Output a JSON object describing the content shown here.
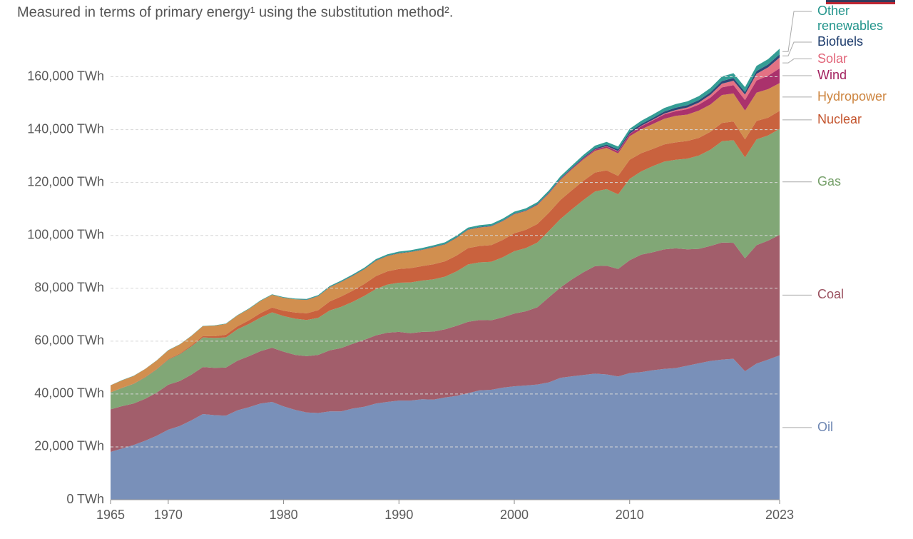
{
  "chart_data": {
    "type": "stacked_area",
    "subtitle": "Measured in terms of primary energy¹ using the substitution method².",
    "x": [
      1965,
      1966,
      1967,
      1968,
      1969,
      1970,
      1971,
      1972,
      1973,
      1974,
      1975,
      1976,
      1977,
      1978,
      1979,
      1980,
      1981,
      1982,
      1983,
      1984,
      1985,
      1986,
      1987,
      1988,
      1989,
      1990,
      1991,
      1992,
      1993,
      1994,
      1995,
      1996,
      1997,
      1998,
      1999,
      2000,
      2001,
      2002,
      2003,
      2004,
      2005,
      2006,
      2007,
      2008,
      2009,
      2010,
      2011,
      2012,
      2013,
      2014,
      2015,
      2016,
      2017,
      2018,
      2019,
      2020,
      2021,
      2022,
      2023
    ],
    "xlim": [
      1965,
      2023
    ],
    "xticks": [
      1965,
      1970,
      1980,
      1990,
      2000,
      2010,
      2023
    ],
    "ylim": [
      0,
      175000
    ],
    "yticks": [
      {
        "value": 0,
        "label": "0 TWh"
      },
      {
        "value": 20000,
        "label": "20,000 TWh"
      },
      {
        "value": 40000,
        "label": "40,000 TWh"
      },
      {
        "value": 60000,
        "label": "60,000 TWh"
      },
      {
        "value": 80000,
        "label": "80,000 TWh"
      },
      {
        "value": 100000,
        "label": "100,000 TWh"
      },
      {
        "value": 120000,
        "label": "120,000 TWh"
      },
      {
        "value": 140000,
        "label": "140,000 TWh"
      },
      {
        "value": 160000,
        "label": "160,000 TWh"
      }
    ],
    "grid": true,
    "series": [
      {
        "name": "Oil",
        "color": "#6e87b3",
        "values": [
          18100,
          19400,
          20700,
          22300,
          24200,
          26500,
          27900,
          30000,
          32400,
          32000,
          31800,
          33800,
          35000,
          36400,
          37000,
          35300,
          34000,
          33000,
          32800,
          33400,
          33400,
          34500,
          35200,
          36400,
          37000,
          37500,
          37500,
          38000,
          37900,
          38700,
          39300,
          40300,
          41400,
          41600,
          42400,
          42900,
          43200,
          43600,
          44400,
          46100,
          46700,
          47200,
          47700,
          47400,
          46600,
          47900,
          48300,
          49000,
          49500,
          49800,
          50700,
          51600,
          52500,
          53000,
          53300,
          48600,
          51500,
          53000,
          54600
        ]
      },
      {
        "name": "Coal",
        "color": "#9a505e",
        "values": [
          16100,
          16000,
          15700,
          15900,
          16300,
          17000,
          17000,
          17300,
          17800,
          17900,
          18200,
          18800,
          19300,
          19800,
          20500,
          20700,
          20800,
          21300,
          22000,
          23100,
          24000,
          24500,
          25300,
          25800,
          26200,
          26000,
          25500,
          25500,
          25700,
          25800,
          26500,
          27000,
          26600,
          26300,
          26600,
          27500,
          28100,
          29200,
          32200,
          34200,
          36700,
          38900,
          40700,
          41100,
          40700,
          42700,
          44400,
          44600,
          45200,
          45300,
          44000,
          43300,
          43500,
          44300,
          43900,
          42700,
          44800,
          45000,
          45600
        ]
      },
      {
        "name": "Gas",
        "color": "#76a06a",
        "values": [
          6400,
          6900,
          7400,
          8100,
          8800,
          9500,
          10100,
          10700,
          11200,
          11300,
          11400,
          11900,
          12200,
          12700,
          13400,
          13500,
          13700,
          13700,
          14000,
          15100,
          15600,
          15900,
          16600,
          17500,
          18200,
          18600,
          19200,
          19400,
          19800,
          19900,
          20600,
          21700,
          21800,
          22100,
          22700,
          23600,
          23900,
          24500,
          25100,
          25900,
          26500,
          27300,
          28200,
          29000,
          28200,
          30800,
          31500,
          32600,
          33200,
          33500,
          34300,
          35300,
          36400,
          38300,
          38800,
          38200,
          40000,
          39800,
          40100
        ]
      },
      {
        "name": "Nuclear",
        "color": "#c4552e",
        "values": [
          70,
          90,
          110,
          140,
          170,
          220,
          300,
          400,
          550,
          650,
          1000,
          1100,
          1400,
          1700,
          1800,
          2000,
          2300,
          2500,
          2900,
          3400,
          3900,
          4200,
          4500,
          4900,
          5000,
          5200,
          5400,
          5500,
          5700,
          5800,
          6000,
          6200,
          6200,
          6300,
          6600,
          6800,
          6900,
          7000,
          6900,
          7200,
          7200,
          7300,
          7200,
          7100,
          7000,
          7200,
          6900,
          6500,
          6500,
          6600,
          6700,
          6700,
          6800,
          6900,
          7100,
          6800,
          7000,
          6700,
          6800
        ]
      },
      {
        "name": "Hydropower",
        "color": "#cd8540",
        "values": [
          2600,
          2800,
          2900,
          3000,
          3200,
          3300,
          3400,
          3500,
          3700,
          4000,
          4100,
          4100,
          4300,
          4600,
          4800,
          4900,
          5000,
          5100,
          5300,
          5400,
          5500,
          5600,
          5600,
          5800,
          5800,
          5900,
          6100,
          6100,
          6400,
          6400,
          6700,
          6900,
          7000,
          7100,
          7100,
          7200,
          7100,
          7200,
          7200,
          7600,
          7900,
          8100,
          8200,
          8500,
          8500,
          8900,
          9000,
          9400,
          9700,
          10000,
          10000,
          10300,
          10300,
          10600,
          10600,
          10900,
          10700,
          10800,
          10500
        ]
      },
      {
        "name": "Wind",
        "color": "#a3215f",
        "values": [
          0,
          0,
          0,
          0,
          0,
          0,
          0,
          0,
          0,
          0,
          0,
          0,
          0,
          0,
          0,
          0,
          0,
          0,
          0,
          0,
          0,
          0,
          0,
          0,
          0,
          10,
          10,
          10,
          20,
          20,
          20,
          30,
          30,
          50,
          60,
          80,
          100,
          140,
          170,
          230,
          280,
          360,
          470,
          590,
          740,
          920,
          1160,
          1370,
          1640,
          1780,
          2050,
          2280,
          2620,
          2890,
          3120,
          4000,
          4600,
          5100,
          5600
        ]
      },
      {
        "name": "Solar",
        "color": "#e2667a",
        "values": [
          0,
          0,
          0,
          0,
          0,
          0,
          0,
          0,
          0,
          0,
          0,
          0,
          0,
          0,
          0,
          0,
          0,
          0,
          0,
          0,
          0,
          0,
          0,
          0,
          0,
          0,
          0,
          0,
          0,
          0,
          0,
          0,
          0,
          0,
          0,
          5,
          10,
          10,
          15,
          20,
          30,
          40,
          60,
          100,
          170,
          80,
          170,
          250,
          330,
          460,
          620,
          790,
          1070,
          1390,
          1680,
          2060,
          2520,
          3140,
          4100
        ]
      },
      {
        "name": "Biofuels",
        "color": "#1b3a6b",
        "values": [
          0,
          0,
          0,
          0,
          0,
          0,
          0,
          0,
          0,
          0,
          0,
          0,
          0,
          0,
          0,
          30,
          40,
          60,
          80,
          100,
          110,
          120,
          120,
          120,
          120,
          120,
          120,
          130,
          130,
          140,
          150,
          150,
          150,
          150,
          140,
          140,
          150,
          170,
          200,
          230,
          260,
          330,
          430,
          570,
          620,
          700,
          710,
          720,
          790,
          840,
          860,
          880,
          920,
          980,
          1050,
          970,
          1040,
          1100,
          1200
        ]
      },
      {
        "name": "Other renewables",
        "color": "#23958c",
        "values": [
          60,
          60,
          70,
          70,
          80,
          90,
          100,
          110,
          120,
          130,
          140,
          150,
          170,
          190,
          210,
          230,
          250,
          280,
          310,
          350,
          390,
          420,
          450,
          480,
          510,
          540,
          560,
          580,
          600,
          620,
          640,
          660,
          680,
          690,
          720,
          740,
          750,
          780,
          820,
          860,
          900,
          940,
          980,
          1020,
          1060,
          1130,
          1180,
          1250,
          1320,
          1400,
          1470,
          1550,
          1640,
          1730,
          1800,
          1870,
          1960,
          2020,
          2090
        ]
      }
    ]
  }
}
